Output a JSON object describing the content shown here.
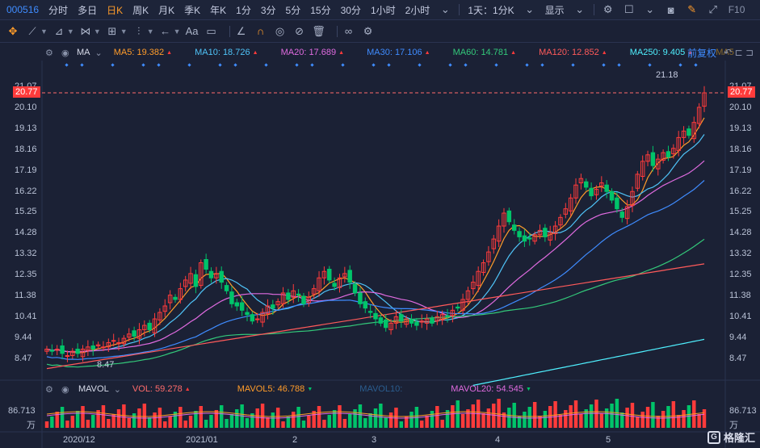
{
  "topbar": {
    "code": "000516",
    "periods": [
      "分时",
      "多日",
      "日K",
      "周K",
      "月K",
      "季K",
      "年K",
      "1分",
      "3分",
      "5分",
      "15分",
      "30分",
      "1小时",
      "2小时"
    ],
    "active_period": "日K",
    "dropdown": "1天：1分K",
    "display_label": "显示",
    "f10": "F10"
  },
  "ma_legend": {
    "ma_label": "MA",
    "items": [
      {
        "label": "MA5: 19.382",
        "color": "#ff9c2a"
      },
      {
        "label": "MA10: 18.726",
        "color": "#4fc3f7"
      },
      {
        "label": "MA20: 17.689",
        "color": "#e06be0"
      },
      {
        "label": "MA30: 17.106",
        "color": "#3f8cff"
      },
      {
        "label": "MA60: 14.781",
        "color": "#33c97a"
      },
      {
        "label": "MA120: 12.852",
        "color": "#ff5a5a"
      },
      {
        "label": "MA250: 9.405",
        "color": "#4ff0ff"
      },
      {
        "label": "MA5",
        "color": "#8a6a2a"
      }
    ],
    "fuquan": "前复权"
  },
  "price_axis": {
    "ticks": [
      "21.07",
      "20.10",
      "19.13",
      "18.16",
      "17.19",
      "16.22",
      "15.25",
      "14.28",
      "13.32",
      "12.35",
      "11.38",
      "10.41",
      "9.44",
      "8.47"
    ],
    "current": "20.77",
    "high_label": "21.18",
    "low_label": "8.47"
  },
  "vol_legend": {
    "label": "MAVOL",
    "vol": "VOL: 59.278",
    "mavol5": "MAVOL5: 46.788",
    "mavol10": "MAVOL10:",
    "mavol20": "MAVOL20: 54.545"
  },
  "vol_axis": {
    "top": "86.713",
    "unit": "万"
  },
  "date_axis": [
    "2020/12",
    "2021/01",
    "2",
    "3",
    "4",
    "5"
  ],
  "brand": "格隆汇",
  "colors": {
    "up": "#ff3b3b",
    "down": "#00c46a",
    "accent": "#3f8cff",
    "active": "#ff9c2a"
  },
  "chart_data": {
    "type": "candlestick",
    "ylim": [
      8.0,
      21.6
    ],
    "close": [
      8.9,
      8.8,
      8.9,
      8.7,
      8.6,
      8.8,
      8.7,
      8.9,
      9.0,
      8.9,
      9.1,
      9.0,
      9.2,
      9.3,
      9.2,
      9.4,
      9.6,
      9.5,
      9.8,
      10.0,
      9.8,
      10.3,
      10.6,
      10.9,
      11.4,
      11.2,
      11.7,
      12.1,
      12.4,
      11.8,
      12.9,
      12.6,
      12.2,
      12.4,
      12.0,
      11.6,
      11.0,
      10.9,
      10.7,
      10.5,
      10.2,
      10.3,
      10.6,
      10.9,
      10.8,
      11.1,
      11.5,
      11.2,
      11.6,
      11.4,
      11.0,
      11.3,
      11.7,
      12.2,
      12.5,
      12.1,
      11.8,
      12.2,
      12.4,
      12.0,
      11.5,
      11.0,
      10.8,
      10.6,
      10.3,
      10.1,
      9.9,
      10.1,
      10.4,
      10.2,
      10.3,
      10.1,
      10.0,
      10.2,
      10.3,
      10.1,
      10.4,
      10.5,
      10.4,
      10.7,
      10.8,
      11.2,
      11.6,
      12.0,
      12.5,
      12.9,
      13.4,
      14.0,
      14.6,
      15.2,
      14.8,
      14.4,
      14.1,
      13.9,
      14.0,
      14.2,
      14.4,
      14.1,
      14.3,
      14.6,
      15.0,
      15.4,
      15.9,
      16.5,
      16.8,
      16.4,
      16.0,
      16.3,
      16.6,
      16.2,
      15.8,
      15.4,
      15.0,
      15.5,
      16.2,
      17.0,
      17.6,
      17.9,
      17.4,
      17.7,
      18.0,
      17.8,
      18.2,
      18.7,
      19.0,
      18.8,
      19.4,
      20.1,
      20.77
    ],
    "ma_series": [
      {
        "name": "MA5",
        "color": "#ff9c2a"
      },
      {
        "name": "MA10",
        "color": "#4fc3f7"
      },
      {
        "name": "MA20",
        "color": "#e06be0"
      },
      {
        "name": "MA30",
        "color": "#3f8cff"
      },
      {
        "name": "MA60",
        "color": "#33c97a"
      },
      {
        "name": "MA120",
        "color": "#ff5a5a"
      },
      {
        "name": "MA250",
        "color": "#4ff0ff"
      }
    ]
  }
}
